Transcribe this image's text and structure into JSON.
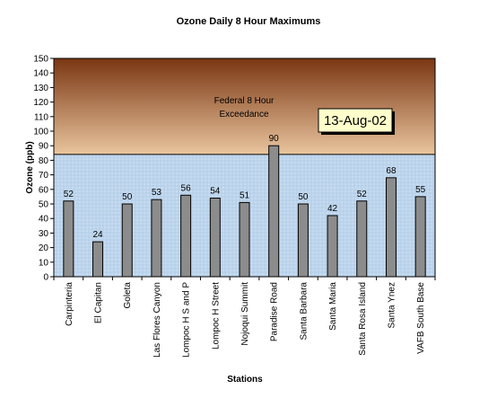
{
  "chart_data": {
    "type": "bar",
    "title": "Ozone Daily 8 Hour Maximums",
    "xlabel": "Stations",
    "ylabel": "Ozone (ppb)",
    "ylim": [
      0,
      150
    ],
    "ytick_step": 10,
    "grid": false,
    "categories": [
      "Carpinteria",
      "El Capitan",
      "Goleta",
      "Las Flores Canyon",
      "Lompoc H S and P",
      "Lompoc H Street",
      "Nojoqui Summit",
      "Paradise Road",
      "Santa Barbara",
      "Santa Maria",
      "Santa Rosa Island",
      "Santa Ynez",
      "VAFB South Base"
    ],
    "values": [
      52,
      24,
      50,
      53,
      56,
      54,
      51,
      90,
      50,
      42,
      52,
      68,
      55
    ],
    "threshold": {
      "value": 84,
      "label_line1": "Federal 8 Hour",
      "label_line2": "Exceedance"
    },
    "date_label": "13-Aug-02",
    "colors": {
      "bar_fill": "#8c8c8c",
      "exceedance_top": "#7a3612",
      "exceedance_bottom": "#e9c59e",
      "normal_zone": "#bcd4ec",
      "date_box": "#ffffcc"
    }
  }
}
